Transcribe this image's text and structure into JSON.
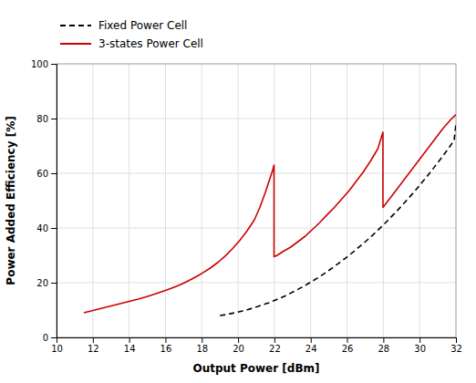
{
  "chart_data": {
    "type": "line",
    "xlabel": "Output Power [dBm]",
    "ylabel": "Power Added Efficiency [%]",
    "xlim": [
      10,
      32
    ],
    "ylim": [
      0,
      100
    ],
    "xticks": [
      10,
      12,
      14,
      16,
      18,
      20,
      22,
      24,
      26,
      28,
      30,
      32
    ],
    "yticks": [
      0,
      20,
      40,
      60,
      80,
      100
    ],
    "grid": true,
    "legend": "top-left",
    "series": [
      {
        "name": "Fixed Power Cell",
        "color": "#000000",
        "line_style": "dashed",
        "x": [
          19.0,
          19.3,
          19.6,
          19.9,
          20.2,
          20.5,
          20.8,
          21.1,
          21.4,
          21.7,
          22.0,
          22.3,
          22.6,
          22.9,
          23.2,
          23.5,
          23.8,
          24.1,
          24.4,
          24.7,
          25.0,
          25.3,
          25.6,
          25.9,
          26.2,
          26.5,
          26.8,
          27.1,
          27.4,
          27.7,
          28.0,
          28.3,
          28.6,
          28.9,
          29.2,
          29.5,
          29.8,
          30.1,
          30.4,
          30.7,
          31.0,
          31.3,
          31.6,
          31.9,
          32.0
        ],
        "values": [
          8.0,
          8.3,
          8.7,
          9.1,
          9.6,
          10.1,
          10.7,
          11.3,
          12.0,
          12.7,
          13.5,
          14.3,
          15.2,
          16.2,
          17.2,
          18.3,
          19.4,
          20.6,
          21.8,
          23.1,
          24.5,
          25.9,
          27.4,
          28.9,
          30.5,
          32.1,
          33.8,
          35.5,
          37.3,
          39.2,
          41.1,
          43.1,
          45.2,
          47.3,
          49.5,
          51.7,
          54.0,
          56.4,
          58.8,
          61.3,
          63.9,
          66.5,
          69.2,
          72.0,
          78.0
        ]
      },
      {
        "name": "3-states Power Cell",
        "color": "#cc0000",
        "line_style": "solid",
        "x": [
          11.5,
          11.8,
          12.1,
          12.4,
          12.7,
          13.0,
          13.3,
          13.6,
          13.9,
          14.2,
          14.5,
          14.8,
          15.1,
          15.4,
          15.7,
          16.0,
          16.3,
          16.6,
          16.9,
          17.2,
          17.5,
          17.8,
          18.1,
          18.5,
          18.9,
          19.3,
          19.7,
          20.1,
          20.5,
          20.9,
          21.2,
          21.5,
          21.7,
          21.9,
          21.98,
          21.98,
          22.15,
          22.5,
          22.9,
          23.3,
          23.7,
          24.1,
          24.5,
          24.9,
          25.3,
          25.7,
          26.1,
          26.5,
          26.9,
          27.3,
          27.7,
          27.98,
          27.98,
          28.15,
          28.5,
          28.9,
          29.3,
          29.7,
          30.1,
          30.5,
          30.9,
          31.3,
          31.7,
          32.0
        ],
        "values": [
          9.0,
          9.5,
          10.0,
          10.5,
          11.0,
          11.5,
          12.0,
          12.5,
          13.0,
          13.5,
          14.0,
          14.6,
          15.2,
          15.8,
          16.5,
          17.2,
          17.9,
          18.7,
          19.5,
          20.5,
          21.5,
          22.6,
          23.8,
          25.5,
          27.5,
          29.8,
          32.5,
          35.5,
          39.0,
          43.0,
          47.5,
          53.0,
          57.0,
          61.0,
          63.0,
          29.5,
          30.0,
          31.5,
          33.0,
          35.0,
          37.0,
          39.5,
          42.0,
          44.8,
          47.5,
          50.5,
          53.5,
          57.0,
          60.5,
          64.5,
          69.0,
          75.0,
          47.5,
          49.0,
          52.0,
          55.5,
          59.0,
          62.5,
          66.0,
          69.5,
          73.0,
          76.5,
          79.5,
          81.5
        ]
      }
    ]
  }
}
